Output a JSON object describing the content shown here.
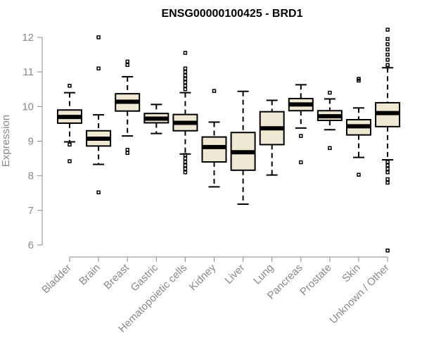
{
  "chart_data": {
    "type": "boxplot",
    "title": "ENSG00000100425 - BRD1",
    "xlabel": "",
    "ylabel": "Expression",
    "ylim": [
      5.8,
      12.25
    ],
    "yticks": [
      6,
      7,
      8,
      9,
      10,
      11,
      12
    ],
    "box_color": "#efe8d2",
    "categories": [
      "Bladder",
      "Brain",
      "Breast",
      "Gastric",
      "Hematopoietic cells",
      "Kidney",
      "Liver",
      "Lung",
      "Pancreas",
      "Prostate",
      "Skin",
      "Unknown / Other"
    ],
    "series": [
      {
        "name": "Bladder",
        "whisker_low": 8.98,
        "q1": 9.52,
        "median": 9.7,
        "q3": 9.9,
        "whisker_high": 10.4,
        "outliers": [
          8.9,
          8.42,
          10.6
        ]
      },
      {
        "name": "Brain",
        "whisker_low": 8.33,
        "q1": 8.86,
        "median": 9.07,
        "q3": 9.3,
        "whisker_high": 9.76,
        "outliers": [
          7.52,
          11.1,
          12.0
        ]
      },
      {
        "name": "Breast",
        "whisker_low": 9.15,
        "q1": 9.87,
        "median": 10.14,
        "q3": 10.37,
        "whisker_high": 10.86,
        "outliers": [
          8.75,
          8.66,
          11.2,
          11.3
        ]
      },
      {
        "name": "Gastric",
        "whisker_low": 9.22,
        "q1": 9.53,
        "median": 9.65,
        "q3": 9.8,
        "whisker_high": 10.06,
        "outliers": []
      },
      {
        "name": "Hematopoietic cells",
        "whisker_low": 8.63,
        "q1": 9.3,
        "median": 9.53,
        "q3": 9.77,
        "whisker_high": 10.4,
        "outliers": [
          8.1,
          8.2,
          8.3,
          8.4,
          8.5,
          8.6,
          10.5,
          10.6,
          10.7,
          10.8,
          10.9,
          11.0,
          11.1,
          11.55
        ]
      },
      {
        "name": "Kidney",
        "whisker_low": 7.68,
        "q1": 8.4,
        "median": 8.83,
        "q3": 9.12,
        "whisker_high": 9.55,
        "outliers": [
          10.45
        ]
      },
      {
        "name": "Liver",
        "whisker_low": 7.18,
        "q1": 8.16,
        "median": 8.68,
        "q3": 9.25,
        "whisker_high": 10.44,
        "outliers": []
      },
      {
        "name": "Lung",
        "whisker_low": 8.02,
        "q1": 8.9,
        "median": 9.37,
        "q3": 9.85,
        "whisker_high": 10.18,
        "outliers": []
      },
      {
        "name": "Pancreas",
        "whisker_low": 9.38,
        "q1": 9.88,
        "median": 10.06,
        "q3": 10.23,
        "whisker_high": 10.63,
        "outliers": [
          9.15,
          8.39
        ]
      },
      {
        "name": "Prostate",
        "whisker_low": 9.33,
        "q1": 9.6,
        "median": 9.72,
        "q3": 9.88,
        "whisker_high": 10.22,
        "outliers": [
          8.8,
          10.4
        ]
      },
      {
        "name": "Skin",
        "whisker_low": 8.53,
        "q1": 9.18,
        "median": 9.43,
        "q3": 9.62,
        "whisker_high": 9.96,
        "outliers": [
          8.03,
          10.75,
          10.8
        ]
      },
      {
        "name": "Unknown / Other",
        "whisker_low": 8.46,
        "q1": 9.42,
        "median": 9.81,
        "q3": 10.11,
        "whisker_high": 11.12,
        "outliers": [
          5.84,
          7.8,
          7.9,
          8.1,
          8.2,
          8.3,
          8.4,
          11.2,
          11.35,
          11.5,
          11.65,
          11.8,
          11.95,
          12.22
        ]
      }
    ]
  }
}
